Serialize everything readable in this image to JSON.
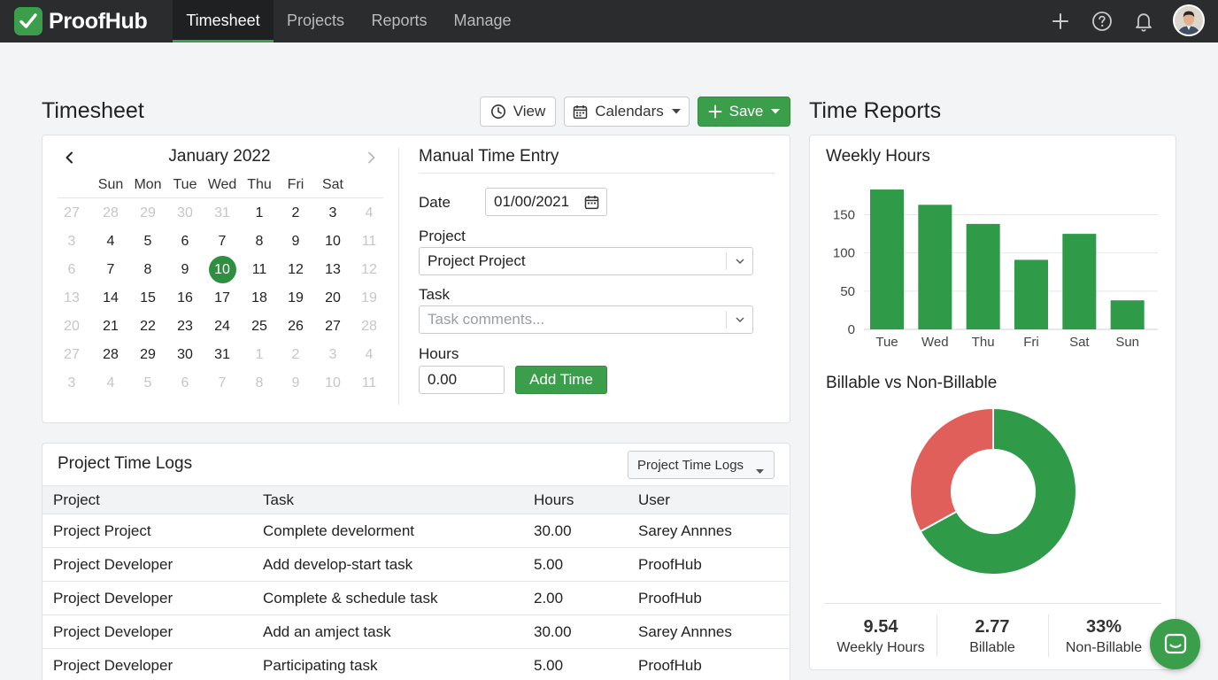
{
  "app": {
    "name": "ProofHub"
  },
  "nav": {
    "tabs": [
      {
        "label": "Timesheet",
        "active": true
      },
      {
        "label": "Projects"
      },
      {
        "label": "Reports"
      },
      {
        "label": "Manage"
      }
    ],
    "icons": [
      "plus-icon",
      "help-icon",
      "bell-icon",
      "avatar"
    ]
  },
  "timesheet": {
    "title": "Timesheet",
    "toolbar": {
      "view_label": "View",
      "calendars_label": "Calendars",
      "save_label": "Save"
    }
  },
  "calendar": {
    "month": "January 2022",
    "weekdays": [
      "Sun",
      "Mon",
      "Tue",
      "Wed",
      "Thu",
      "Fri",
      "Sat"
    ],
    "weeks": [
      [
        "27",
        "28",
        "29",
        "30",
        "31",
        "1",
        "2",
        "3",
        "4"
      ],
      [
        "3",
        "4",
        "5",
        "6",
        "7",
        "8",
        "9",
        "10",
        "11"
      ],
      [
        "6",
        "7",
        "8",
        "9",
        "10",
        "11",
        "12",
        "13",
        "12"
      ],
      [
        "13",
        "14",
        "15",
        "16",
        "17",
        "18",
        "19",
        "20",
        "19"
      ],
      [
        "20",
        "21",
        "22",
        "23",
        "24",
        "25",
        "26",
        "27",
        "28"
      ],
      [
        "27",
        "28",
        "29",
        "30",
        "31",
        "1",
        "2",
        "3",
        "4"
      ],
      [
        "3",
        "4",
        "5",
        "6",
        "7",
        "8",
        "9",
        "10",
        "11"
      ]
    ],
    "muted": [
      [
        true,
        true,
        true,
        true,
        true,
        false,
        false,
        false,
        true
      ],
      [
        true,
        false,
        false,
        false,
        false,
        false,
        false,
        false,
        true
      ],
      [
        true,
        false,
        false,
        false,
        false,
        false,
        false,
        false,
        true
      ],
      [
        true,
        false,
        false,
        false,
        false,
        false,
        false,
        false,
        true
      ],
      [
        true,
        false,
        false,
        false,
        false,
        false,
        false,
        false,
        true
      ],
      [
        true,
        false,
        false,
        false,
        false,
        true,
        true,
        true,
        true
      ],
      [
        true,
        true,
        true,
        true,
        true,
        true,
        true,
        true,
        true
      ]
    ],
    "selected": "10"
  },
  "manual_entry": {
    "title": "Manual Time Entry",
    "date_label": "Date",
    "date_value": "01/00/2021",
    "project_label": "Project",
    "project_value": "Project Project",
    "task_label": "Task",
    "task_placeholder": "Task comments...",
    "hours_label": "Hours",
    "hours_value": "0.00",
    "add_button": "Add Time"
  },
  "logs": {
    "title": "Project Time Logs",
    "filter_value": "Project Time Logs",
    "columns": [
      "Project",
      "Task",
      "Hours",
      "User"
    ],
    "rows": [
      [
        "Project Project",
        "Complete develorment",
        "30.00",
        "Sarey Annnes"
      ],
      [
        "Project Developer",
        "Add develop-start task",
        "5.00",
        "ProofHub"
      ],
      [
        "Project Developer",
        "Complete & schedule task",
        "2.00",
        "ProofHub"
      ],
      [
        "Project Developer",
        "Add an amject task",
        "30.00",
        "Sarey Annnes"
      ],
      [
        "Project Developer",
        "Participating task",
        "5.00",
        "ProofHub"
      ]
    ]
  },
  "reports": {
    "title": "Time Reports",
    "weekly_title": "Weekly Hours",
    "billable_title": "Billable vs Non-Billable",
    "stats": [
      {
        "value": "9.54",
        "label": "Weekly Hours"
      },
      {
        "value": "2.77",
        "label": "Billable"
      },
      {
        "value": "33%",
        "label": "Non-Billable"
      }
    ]
  },
  "colors": {
    "accent": "#3a9e4b",
    "bar": "#2f9a48",
    "non_billable": "#e05f5b",
    "nav_bg": "#2b2c2e"
  },
  "chart_data": [
    {
      "type": "bar",
      "title": "Weekly Hours",
      "categories": [
        "Tue",
        "Wed",
        "Thu",
        "Fri",
        "Sat",
        "Sun"
      ],
      "values": [
        183,
        163,
        138,
        91,
        125,
        38
      ],
      "yticks": [
        0,
        50,
        100,
        150
      ],
      "ylim": [
        0,
        190
      ],
      "grid": true
    },
    {
      "type": "pie",
      "title": "Billable vs Non-Billable",
      "donut": true,
      "slices": [
        {
          "label": "Billable",
          "value": 67,
          "color": "#2f9a48"
        },
        {
          "label": "Non-Billable",
          "value": 33,
          "color": "#e05f5b"
        }
      ]
    }
  ]
}
